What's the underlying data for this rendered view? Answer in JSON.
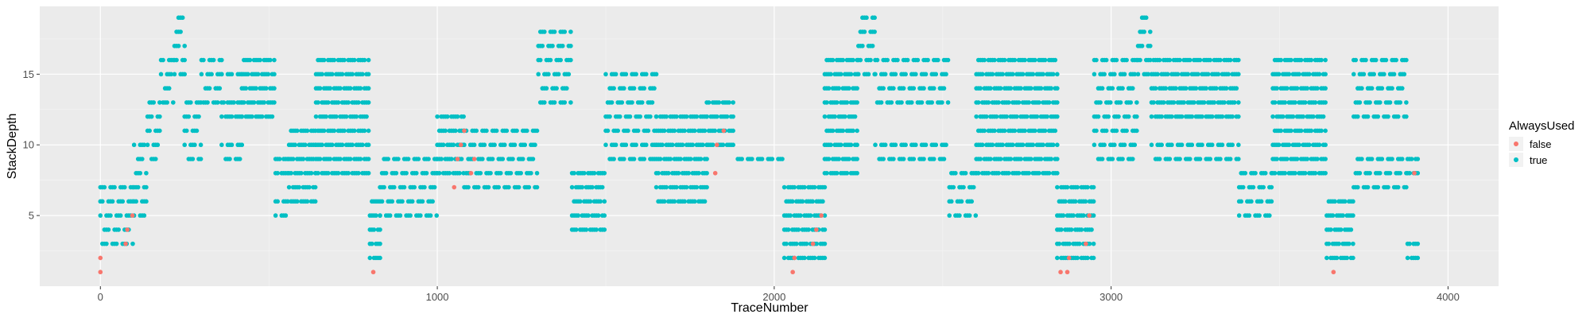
{
  "chart_data": {
    "type": "scatter",
    "xlabel": "TraceNumber",
    "ylabel": "StackDepth",
    "xlim": [
      -180,
      4150
    ],
    "ylim": [
      0,
      19.8
    ],
    "x_ticks": [
      0,
      1000,
      2000,
      3000,
      4000
    ],
    "x_tick_labels": [
      "0",
      "1000",
      "2000",
      "3000",
      "4000"
    ],
    "y_ticks": [
      5,
      10,
      15
    ],
    "y_tick_labels": [
      "5",
      "10",
      "15"
    ],
    "grid": true,
    "panel_background": "#ebebeb",
    "legend": {
      "title": "AlwaysUsed",
      "position": "right",
      "entries": [
        {
          "label": "false",
          "color": "#f8766d"
        },
        {
          "label": "true",
          "color": "#00bfc4"
        }
      ]
    },
    "series": [
      {
        "name": "false",
        "color": "#f8766d",
        "points": [
          [
            0,
            1
          ],
          [
            0,
            2
          ],
          [
            75,
            3
          ],
          [
            80,
            4
          ],
          [
            95,
            5
          ],
          [
            810,
            1
          ],
          [
            1050,
            7
          ],
          [
            1060,
            9
          ],
          [
            1070,
            10
          ],
          [
            1080,
            11
          ],
          [
            1100,
            8
          ],
          [
            1110,
            9
          ],
          [
            1825,
            8
          ],
          [
            1830,
            10
          ],
          [
            1850,
            11
          ],
          [
            2055,
            1
          ],
          [
            2060,
            2
          ],
          [
            2115,
            3
          ],
          [
            2125,
            4
          ],
          [
            2140,
            5
          ],
          [
            2850,
            1
          ],
          [
            2870,
            1
          ],
          [
            2875,
            2
          ],
          [
            2925,
            3
          ],
          [
            2935,
            5
          ],
          [
            3660,
            1
          ],
          [
            3900,
            8
          ]
        ]
      },
      {
        "name": "true",
        "color": "#00bfc4",
        "segments": [
          {
            "x0": 0,
            "x1": 100,
            "levels": [
              3,
              4,
              5,
              6,
              7
            ]
          },
          {
            "x0": 100,
            "x1": 140,
            "levels": [
              5,
              6,
              7,
              8,
              9,
              10
            ]
          },
          {
            "x0": 140,
            "x1": 180,
            "levels": [
              9,
              10,
              11,
              12,
              13
            ]
          },
          {
            "x0": 180,
            "x1": 220,
            "levels": [
              13,
              14,
              15,
              16
            ]
          },
          {
            "x0": 220,
            "x1": 250,
            "levels": [
              15,
              16,
              17,
              18,
              19
            ]
          },
          {
            "x0": 250,
            "x1": 300,
            "levels": [
              9,
              10,
              11,
              12,
              13
            ]
          },
          {
            "x0": 300,
            "x1": 360,
            "levels": [
              13,
              14,
              15,
              16
            ]
          },
          {
            "x0": 360,
            "x1": 420,
            "levels": [
              9,
              10,
              12,
              13,
              15
            ]
          },
          {
            "x0": 420,
            "x1": 520,
            "levels": [
              12,
              13,
              14,
              15,
              16
            ]
          },
          {
            "x0": 520,
            "x1": 560,
            "levels": [
              5,
              6,
              8,
              9
            ]
          },
          {
            "x0": 560,
            "x1": 640,
            "levels": [
              6,
              7,
              8,
              9,
              10,
              11
            ]
          },
          {
            "x0": 640,
            "x1": 800,
            "levels": [
              8,
              9,
              10,
              11,
              12,
              13,
              14,
              15,
              16
            ]
          },
          {
            "x0": 800,
            "x1": 830,
            "levels": [
              2,
              3,
              4,
              5,
              6
            ]
          },
          {
            "x0": 830,
            "x1": 1000,
            "levels": [
              5,
              6,
              7,
              8,
              9
            ]
          },
          {
            "x0": 1000,
            "x1": 1080,
            "levels": [
              8,
              9,
              10,
              11,
              12
            ]
          },
          {
            "x0": 1080,
            "x1": 1300,
            "levels": [
              7,
              8,
              9,
              10,
              11
            ]
          },
          {
            "x0": 1300,
            "x1": 1400,
            "levels": [
              13,
              14,
              15,
              16,
              17,
              18
            ]
          },
          {
            "x0": 1400,
            "x1": 1500,
            "levels": [
              4,
              5,
              6,
              7,
              8
            ]
          },
          {
            "x0": 1500,
            "x1": 1650,
            "levels": [
              9,
              10,
              11,
              12,
              13,
              14,
              15
            ]
          },
          {
            "x0": 1650,
            "x1": 1800,
            "levels": [
              6,
              7,
              8,
              9,
              10,
              11,
              12
            ]
          },
          {
            "x0": 1800,
            "x1": 1880,
            "levels": [
              10,
              11,
              12,
              13
            ]
          },
          {
            "x0": 1880,
            "x1": 2030,
            "levels": [
              9
            ]
          },
          {
            "x0": 2030,
            "x1": 2150,
            "levels": [
              2,
              3,
              4,
              5,
              6,
              7
            ]
          },
          {
            "x0": 2150,
            "x1": 2250,
            "levels": [
              8,
              9,
              10,
              11,
              12,
              13,
              14,
              15,
              16
            ]
          },
          {
            "x0": 2250,
            "x1": 2300,
            "levels": [
              15,
              16,
              17,
              18,
              19
            ]
          },
          {
            "x0": 2300,
            "x1": 2520,
            "levels": [
              9,
              10,
              13,
              14,
              15,
              16
            ]
          },
          {
            "x0": 2520,
            "x1": 2600,
            "levels": [
              5,
              6,
              7,
              8
            ]
          },
          {
            "x0": 2600,
            "x1": 2840,
            "levels": [
              8,
              9,
              10,
              11,
              12,
              13,
              14,
              15,
              16
            ]
          },
          {
            "x0": 2840,
            "x1": 2950,
            "levels": [
              2,
              3,
              4,
              5,
              6,
              7
            ]
          },
          {
            "x0": 2950,
            "x1": 3080,
            "levels": [
              9,
              10,
              11,
              12,
              13,
              14,
              15,
              16
            ]
          },
          {
            "x0": 3080,
            "x1": 3120,
            "levels": [
              15,
              16,
              17,
              18,
              19
            ]
          },
          {
            "x0": 3120,
            "x1": 3380,
            "levels": [
              9,
              10,
              12,
              13,
              14,
              15,
              16
            ]
          },
          {
            "x0": 3380,
            "x1": 3480,
            "levels": [
              5,
              6,
              7,
              8
            ]
          },
          {
            "x0": 3480,
            "x1": 3640,
            "levels": [
              8,
              9,
              10,
              11,
              12,
              13,
              14,
              15,
              16
            ]
          },
          {
            "x0": 3640,
            "x1": 3720,
            "levels": [
              2,
              3,
              4,
              5,
              6
            ]
          },
          {
            "x0": 3720,
            "x1": 3880,
            "levels": [
              7,
              8,
              9,
              12,
              13,
              14,
              15,
              16
            ]
          },
          {
            "x0": 3880,
            "x1": 3910,
            "levels": [
              2,
              3,
              8,
              9
            ]
          }
        ]
      }
    ]
  }
}
